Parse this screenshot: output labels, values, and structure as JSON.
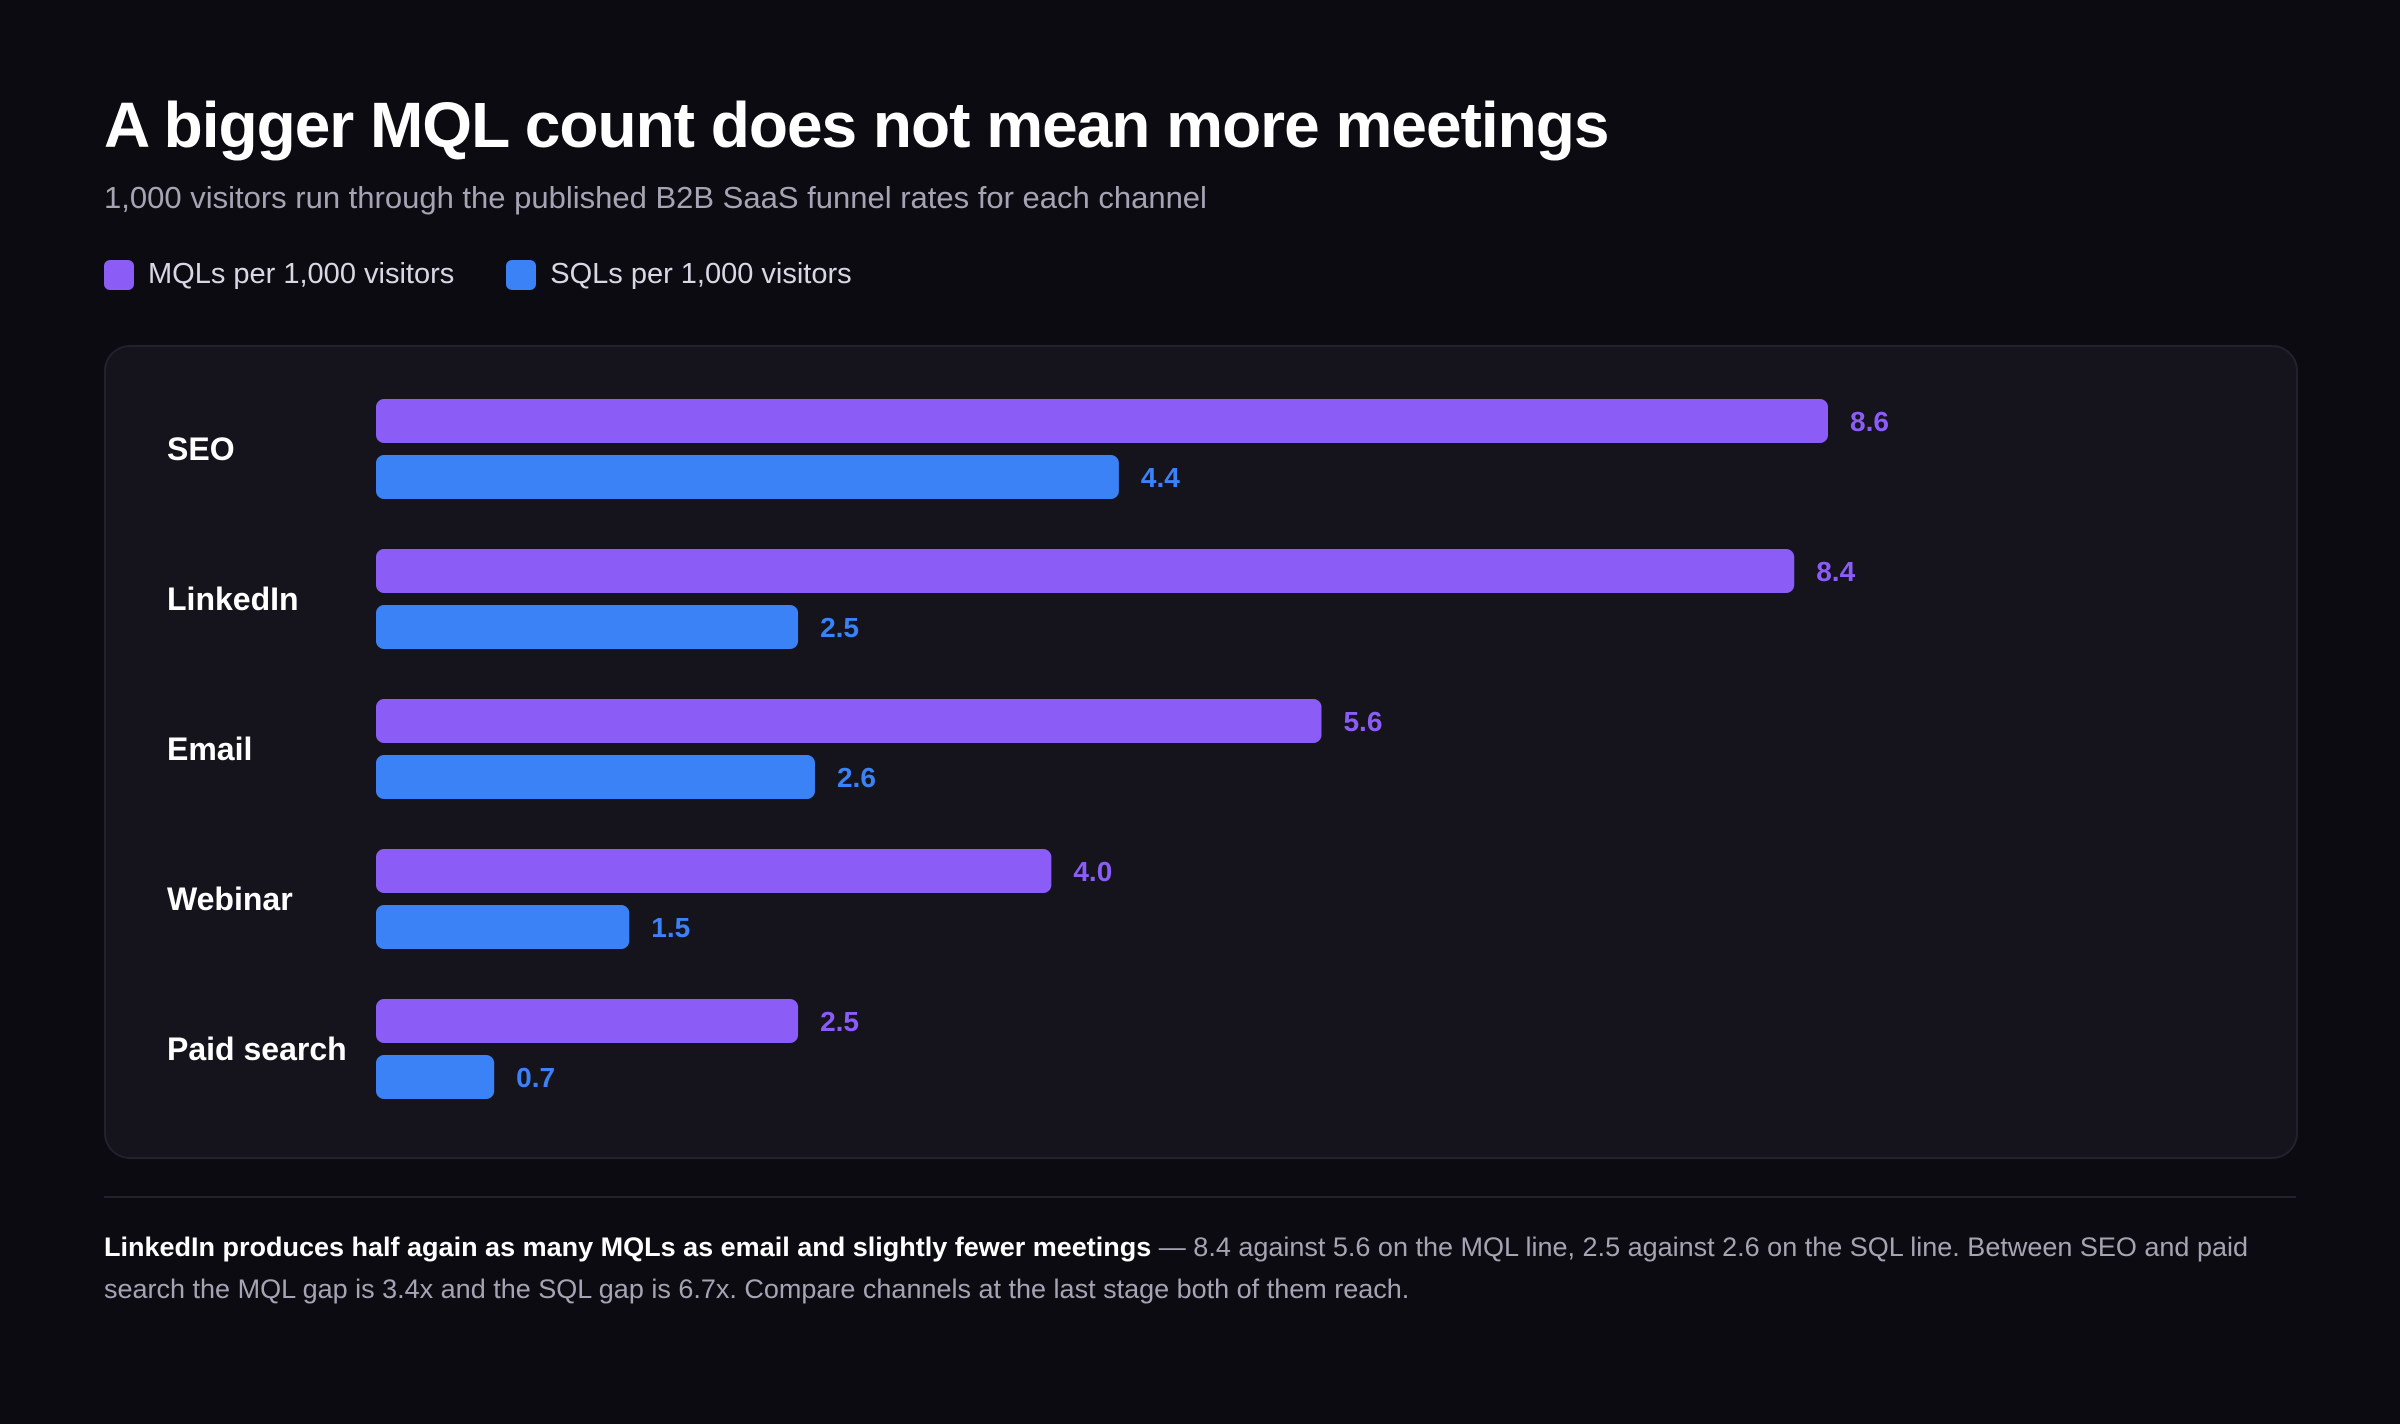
{
  "header": {
    "title": "A bigger MQL count does not mean more meetings",
    "subtitle": "1,000 visitors run through the published B2B SaaS funnel rates for each channel"
  },
  "legend": [
    {
      "label": "MQLs per 1,000 visitors",
      "color": "#8b5cf6"
    },
    {
      "label": "SQLs per 1,000 visitors",
      "color": "#3b82f6"
    }
  ],
  "chart_data": {
    "type": "bar",
    "orientation": "horizontal",
    "categories": [
      "SEO",
      "LinkedIn",
      "Email",
      "Webinar",
      "Paid search"
    ],
    "series": [
      {
        "name": "MQLs per 1,000 visitors",
        "color": "#8b5cf6",
        "values": [
          8.6,
          8.4,
          5.6,
          4.0,
          2.5
        ],
        "labels": [
          "8.6",
          "8.4",
          "5.6",
          "4.0",
          "2.5"
        ]
      },
      {
        "name": "SQLs per 1,000 visitors",
        "color": "#3b82f6",
        "values": [
          4.4,
          2.5,
          2.6,
          1.5,
          0.7
        ],
        "labels": [
          "4.4",
          "2.5",
          "2.6",
          "1.5",
          "0.7"
        ]
      }
    ],
    "xlim": [
      0,
      8.6
    ],
    "grid": false,
    "legend_position": "top-left"
  },
  "footnote": {
    "bold": "LinkedIn produces half again as many MQLs as email and slightly fewer meetings",
    "rest": " — 8.4 against 5.6 on the MQL line, 2.5 against 2.6 on the SQL line. Between SEO and paid search the MQL gap is 3.4x and the SQL gap is 6.7x. Compare channels at the last stage both of them reach."
  }
}
